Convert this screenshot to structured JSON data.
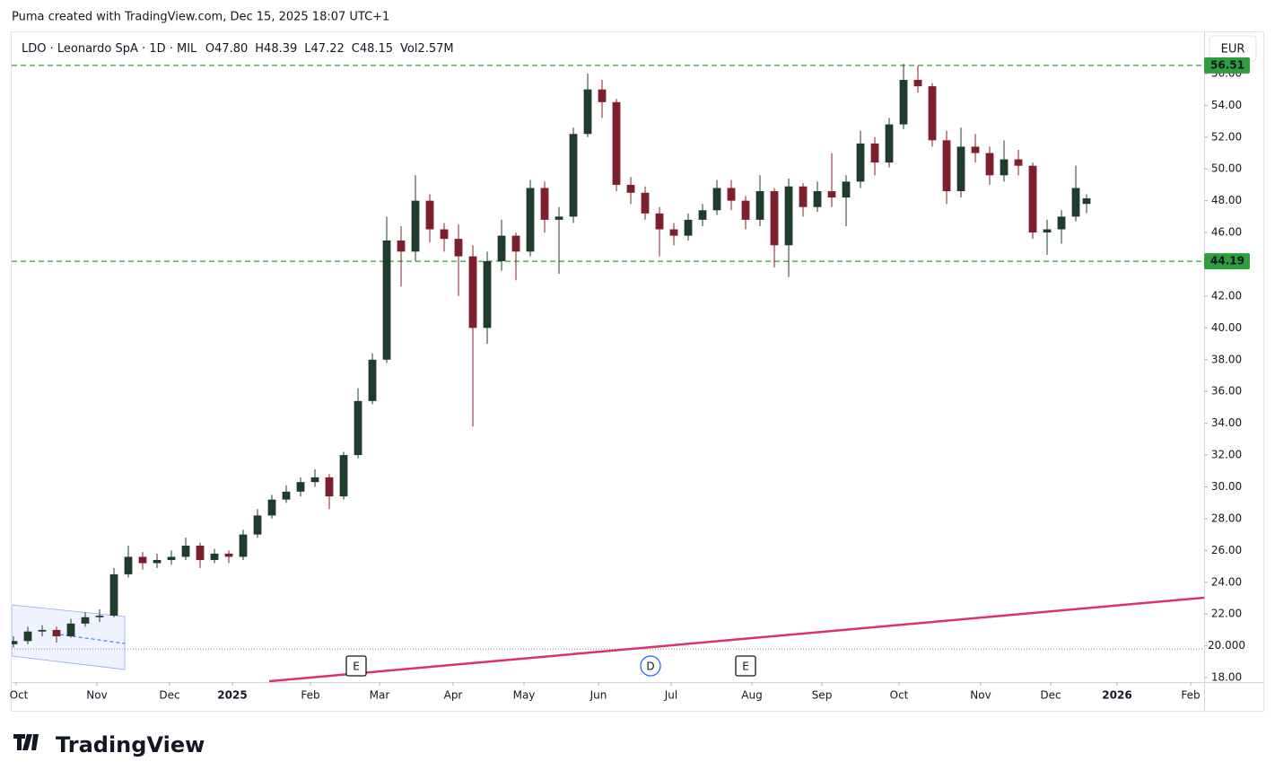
{
  "header": {
    "credit": "Puma created with TradingView.com, Dec 15, 2025 18:07 UTC+1",
    "brand": "TradingView"
  },
  "chart_data": {
    "type": "candlestick",
    "symbol": "LDO · Leonardo SpA · 1D · MIL",
    "ohlc": [
      {
        "key": "O",
        "value": "47.80"
      },
      {
        "key": "H",
        "value": "48.39"
      },
      {
        "key": "L",
        "value": "47.22"
      },
      {
        "key": "C",
        "value": "48.15"
      }
    ],
    "volume": {
      "key": "Vol",
      "value": "2.57M"
    },
    "currency": "EUR",
    "up_color": "#1f3b2c",
    "down_color": "#7d1f2c",
    "x": [
      0,
      4,
      8,
      12,
      16,
      20,
      24,
      28,
      32,
      36,
      40,
      44,
      48,
      52,
      56,
      60,
      64,
      68,
      72,
      76,
      80,
      84,
      88,
      92,
      96,
      100,
      104,
      108,
      112,
      116,
      120,
      124,
      128,
      132,
      136,
      140,
      144,
      148,
      152,
      156,
      160,
      164,
      168,
      172,
      176,
      180,
      184,
      188,
      192,
      196,
      200,
      204,
      208,
      212,
      216,
      220,
      224,
      228,
      232,
      236,
      240,
      244,
      248,
      252,
      256,
      260,
      264,
      268,
      272,
      276,
      280,
      284,
      288,
      292,
      296,
      299
    ],
    "open": [
      20.1,
      20.3,
      20.9,
      21.0,
      20.6,
      21.4,
      21.8,
      21.9,
      24.5,
      25.6,
      25.2,
      25.4,
      25.6,
      26.3,
      25.4,
      25.8,
      25.6,
      27.0,
      28.2,
      29.2,
      29.7,
      30.3,
      30.6,
      29.4,
      32.0,
      35.4,
      38.0,
      45.5,
      44.8,
      48.0,
      46.2,
      45.6,
      44.5,
      40.0,
      44.2,
      45.8,
      44.8,
      48.8,
      46.8,
      47.0,
      52.2,
      55.0,
      54.2,
      49.0,
      48.5,
      47.2,
      46.2,
      45.8,
      46.8,
      47.4,
      48.8,
      48.0,
      46.8,
      48.6,
      45.2,
      48.9,
      47.6,
      48.6,
      48.2,
      49.2,
      51.6,
      50.4,
      52.8,
      55.6,
      55.2,
      51.8,
      48.6,
      51.4,
      51.0,
      49.6,
      50.6,
      50.2,
      46.0,
      46.2,
      47.0,
      47.8
    ],
    "high": [
      20.6,
      21.2,
      21.3,
      21.2,
      21.7,
      22.1,
      22.3,
      24.9,
      26.3,
      25.9,
      25.8,
      26.0,
      26.8,
      26.5,
      26.1,
      26.0,
      27.3,
      28.6,
      29.5,
      30.1,
      30.6,
      31.1,
      30.8,
      32.2,
      36.2,
      38.4,
      47.0,
      46.4,
      49.6,
      48.4,
      46.6,
      46.5,
      45.2,
      44.8,
      46.8,
      46.0,
      49.3,
      49.2,
      47.6,
      52.6,
      56.0,
      55.6,
      54.4,
      49.5,
      48.9,
      47.6,
      46.6,
      47.2,
      47.8,
      49.3,
      49.3,
      48.3,
      49.6,
      48.8,
      49.4,
      49.1,
      49.2,
      51.0,
      49.6,
      52.4,
      52.0,
      53.2,
      56.6,
      56.5,
      55.4,
      52.4,
      52.6,
      52.2,
      51.4,
      51.8,
      51.2,
      50.4,
      46.8,
      47.4,
      50.2,
      48.39
    ],
    "low": [
      19.9,
      20.1,
      20.6,
      20.2,
      20.5,
      21.2,
      21.5,
      21.8,
      24.3,
      24.8,
      24.9,
      25.1,
      25.4,
      24.9,
      25.2,
      25.2,
      25.4,
      26.8,
      28.0,
      29.0,
      29.4,
      30.0,
      28.6,
      29.2,
      31.8,
      35.2,
      37.8,
      42.6,
      44.2,
      45.4,
      44.8,
      42.0,
      33.8,
      39.0,
      43.6,
      43.0,
      44.5,
      46.0,
      43.4,
      46.6,
      52.0,
      53.2,
      48.6,
      47.8,
      46.8,
      44.5,
      45.2,
      45.5,
      46.4,
      47.1,
      47.4,
      46.2,
      46.4,
      43.8,
      43.2,
      47.0,
      47.3,
      47.6,
      46.4,
      48.8,
      49.6,
      50.1,
      52.5,
      54.8,
      51.4,
      47.8,
      48.2,
      50.4,
      49.0,
      49.2,
      49.6,
      45.6,
      44.6,
      45.3,
      46.7,
      47.22
    ],
    "close": [
      20.3,
      20.9,
      21.0,
      20.6,
      21.4,
      21.8,
      21.9,
      24.5,
      25.6,
      25.2,
      25.4,
      25.6,
      26.3,
      25.4,
      25.8,
      25.6,
      27.0,
      28.2,
      29.2,
      29.7,
      30.3,
      30.6,
      29.4,
      32.0,
      35.4,
      38.0,
      45.5,
      44.8,
      48.0,
      46.2,
      45.6,
      44.5,
      40.0,
      44.2,
      45.8,
      44.8,
      48.8,
      46.8,
      47.0,
      52.2,
      55.0,
      54.2,
      49.0,
      48.5,
      47.2,
      46.2,
      45.8,
      46.8,
      47.4,
      48.8,
      48.0,
      46.8,
      48.6,
      45.2,
      48.9,
      47.6,
      48.6,
      48.2,
      49.2,
      51.6,
      50.4,
      52.8,
      55.6,
      55.2,
      51.8,
      48.6,
      51.4,
      51.0,
      49.6,
      50.6,
      50.2,
      46.0,
      46.2,
      47.0,
      48.8,
      48.15
    ],
    "xlim": [
      -0.5,
      331.75
    ],
    "xticks": [
      {
        "value": 0.75,
        "label": "Oct"
      },
      {
        "value": 23.25,
        "label": "Nov"
      },
      {
        "value": 43.5,
        "label": "Dec"
      },
      {
        "value": 61,
        "label": "2025"
      },
      {
        "value": 82.75,
        "label": "Feb"
      },
      {
        "value": 102,
        "label": "Mar"
      },
      {
        "value": 122.5,
        "label": "Apr"
      },
      {
        "value": 142.25,
        "label": "May"
      },
      {
        "value": 163,
        "label": "Jun"
      },
      {
        "value": 183.25,
        "label": "Jul"
      },
      {
        "value": 205.75,
        "label": "Aug"
      },
      {
        "value": 225.25,
        "label": "Sep"
      },
      {
        "value": 246.75,
        "label": "Oct"
      },
      {
        "value": 269.5,
        "label": "Nov"
      },
      {
        "value": 289,
        "label": "Dec"
      },
      {
        "value": 307.5,
        "label": "2026"
      },
      {
        "value": 328,
        "label": "Feb"
      }
    ],
    "ylim": [
      17.72,
      58.65
    ],
    "yticks": [
      {
        "value": 18,
        "label": "18.00"
      },
      {
        "value": 20,
        "label": "20.000"
      },
      {
        "value": 22,
        "label": "22.00"
      },
      {
        "value": 24,
        "label": "24.00"
      },
      {
        "value": 26,
        "label": "26.00"
      },
      {
        "value": 28,
        "label": "28.00"
      },
      {
        "value": 30,
        "label": "30.00"
      },
      {
        "value": 32,
        "label": "32.00"
      },
      {
        "value": 34,
        "label": "34.00"
      },
      {
        "value": 36,
        "label": "36.00"
      },
      {
        "value": 38,
        "label": "38.00"
      },
      {
        "value": 40,
        "label": "40.00"
      },
      {
        "value": 42,
        "label": "42.00"
      },
      {
        "value": 44,
        "label": "44.00"
      },
      {
        "value": 46,
        "label": "46.00"
      },
      {
        "value": 48,
        "label": "48.00"
      },
      {
        "value": 50,
        "label": "50.00"
      },
      {
        "value": 52,
        "label": "52.00"
      },
      {
        "value": 54,
        "label": "54.00"
      },
      {
        "value": 56,
        "label": "56.00"
      }
    ],
    "grid": false,
    "hlines": [
      {
        "value": 56.51,
        "label": "56.51",
        "color": "#2e9e3e",
        "style": "dashed"
      },
      {
        "value": 44.19,
        "label": "44.19",
        "color": "#2e9e3e",
        "style": "dashed"
      },
      {
        "value": 19.8,
        "color": "#888888",
        "style": "dotted"
      }
    ],
    "trendline": {
      "color": "#e0306a",
      "x": [
        71.25,
        331.75
      ],
      "y": [
        17.77,
        23.03
      ]
    },
    "events": [
      {
        "label": "E",
        "x": 95.5,
        "color": "#131722"
      },
      {
        "label": "D",
        "x": 177.5,
        "color": "#2962ff"
      },
      {
        "label": "E",
        "x": 204,
        "color": "#131722"
      }
    ]
  }
}
